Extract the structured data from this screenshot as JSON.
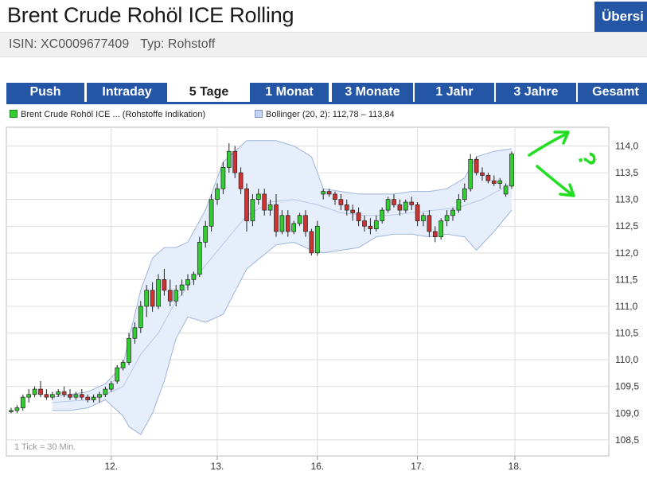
{
  "header": {
    "title": "Brent Crude Rohöl ICE Rolling",
    "isin_text": "ISIN: XC0009677409",
    "type_text": "Typ: Rohstoff",
    "overview_button": "Übersi"
  },
  "tabs": [
    {
      "label": "Push",
      "active": false
    },
    {
      "label": "Intraday",
      "active": false
    },
    {
      "label": "5 Tage",
      "active": true
    },
    {
      "label": "1 Monat",
      "active": false
    },
    {
      "label": "3 Monate",
      "active": false
    },
    {
      "label": "1 Jahr",
      "active": false
    },
    {
      "label": "3 Jahre",
      "active": false
    },
    {
      "label": "Gesamt",
      "active": false
    }
  ],
  "legend": {
    "series_label": "Brent Crude Rohöl ICE ... (Rohstoffe Indikation)",
    "bollinger_label": "Bollinger (20, 2): 112,78 – 113,84"
  },
  "colors": {
    "up": "#33cc33",
    "down": "#cc3333",
    "band_fill": "#e6eefb",
    "band_line": "#9fb5dc",
    "tab_bg": "#2456a5",
    "annotation": "#22dd22"
  },
  "annotation_glyph": "?",
  "chart_data": {
    "type": "candlestick",
    "tick_note": "1 Tick = 30 Min.",
    "ylim": [
      108.2,
      114.35
    ],
    "xlim": [
      0,
      85
    ],
    "yticks": [
      "114,0",
      "113,5",
      "113,0",
      "112,5",
      "112,0",
      "111,5",
      "111,0",
      "110,5",
      "110,0",
      "109,5",
      "109,0",
      "108,5"
    ],
    "ytick_values": [
      114.0,
      113.5,
      113.0,
      112.5,
      112.0,
      111.5,
      111.0,
      110.5,
      110.0,
      109.5,
      109.0,
      108.5
    ],
    "xticks": [
      {
        "label": "12.",
        "index": 17
      },
      {
        "label": "13.",
        "index": 35
      },
      {
        "label": "16.",
        "index": 52
      },
      {
        "label": "17.",
        "index": 69
      },
      {
        "label": "18.",
        "index": 86
      }
    ],
    "grid": true,
    "candles": [
      [
        109.05,
        109.1,
        109.0,
        109.05
      ],
      [
        109.05,
        109.15,
        109.0,
        109.1
      ],
      [
        109.1,
        109.35,
        109.05,
        109.3
      ],
      [
        109.3,
        109.45,
        109.2,
        109.35
      ],
      [
        109.35,
        109.5,
        109.3,
        109.45
      ],
      [
        109.45,
        109.6,
        109.3,
        109.35
      ],
      [
        109.35,
        109.45,
        109.25,
        109.3
      ],
      [
        109.3,
        109.4,
        109.25,
        109.35
      ],
      [
        109.35,
        109.45,
        109.3,
        109.4
      ],
      [
        109.4,
        109.5,
        109.3,
        109.35
      ],
      [
        109.35,
        109.45,
        109.25,
        109.3
      ],
      [
        109.3,
        109.4,
        109.25,
        109.35
      ],
      [
        109.35,
        109.45,
        109.25,
        109.3
      ],
      [
        109.3,
        109.35,
        109.2,
        109.25
      ],
      [
        109.25,
        109.35,
        109.2,
        109.3
      ],
      [
        109.3,
        109.4,
        109.2,
        109.35
      ],
      [
        109.35,
        109.5,
        109.3,
        109.45
      ],
      [
        109.45,
        109.6,
        109.4,
        109.55
      ],
      [
        109.6,
        109.9,
        109.55,
        109.85
      ],
      [
        109.85,
        110.0,
        109.8,
        109.95
      ],
      [
        109.95,
        110.5,
        109.9,
        110.4
      ],
      [
        110.4,
        110.7,
        110.3,
        110.6
      ],
      [
        110.6,
        111.1,
        110.5,
        111.0
      ],
      [
        111.0,
        111.4,
        110.8,
        111.3
      ],
      [
        111.3,
        111.45,
        110.9,
        111.0
      ],
      [
        111.0,
        111.6,
        110.95,
        111.5
      ],
      [
        111.5,
        111.7,
        111.2,
        111.3
      ],
      [
        111.3,
        111.5,
        111.0,
        111.1
      ],
      [
        111.1,
        111.4,
        111.0,
        111.3
      ],
      [
        111.3,
        111.5,
        111.2,
        111.4
      ],
      [
        111.4,
        111.6,
        111.3,
        111.5
      ],
      [
        111.5,
        111.65,
        111.4,
        111.6
      ],
      [
        111.6,
        112.3,
        111.55,
        112.2
      ],
      [
        112.2,
        112.6,
        112.1,
        112.5
      ],
      [
        112.5,
        113.1,
        112.4,
        113.0
      ],
      [
        113.0,
        113.3,
        112.9,
        113.2
      ],
      [
        113.2,
        113.7,
        113.1,
        113.6
      ],
      [
        113.6,
        114.05,
        113.5,
        113.9
      ],
      [
        113.9,
        114.0,
        113.4,
        113.5
      ],
      [
        113.5,
        113.6,
        113.1,
        113.2
      ],
      [
        113.2,
        113.3,
        112.4,
        112.6
      ],
      [
        112.6,
        113.1,
        112.5,
        113.0
      ],
      [
        113.0,
        113.2,
        112.9,
        113.1
      ],
      [
        113.1,
        113.2,
        112.7,
        112.8
      ],
      [
        112.8,
        113.0,
        112.7,
        112.9
      ],
      [
        112.9,
        113.1,
        112.3,
        112.4
      ],
      [
        112.4,
        112.8,
        112.35,
        112.7
      ],
      [
        112.7,
        112.8,
        112.3,
        112.4
      ],
      [
        112.4,
        112.6,
        112.35,
        112.55
      ],
      [
        112.55,
        112.75,
        112.5,
        112.7
      ],
      [
        112.7,
        112.8,
        112.3,
        112.4
      ],
      [
        112.4,
        112.45,
        111.95,
        112.0
      ],
      [
        112.0,
        112.6,
        111.95,
        112.5
      ],
      [
        113.1,
        113.2,
        113.0,
        113.15
      ],
      [
        113.15,
        113.2,
        113.05,
        113.1
      ],
      [
        113.1,
        113.15,
        112.9,
        113.0
      ],
      [
        113.0,
        113.1,
        112.8,
        112.9
      ],
      [
        112.9,
        113.0,
        112.7,
        112.8
      ],
      [
        112.8,
        112.9,
        112.6,
        112.75
      ],
      [
        112.75,
        112.85,
        112.5,
        112.6
      ],
      [
        112.6,
        112.7,
        112.4,
        112.5
      ],
      [
        112.5,
        112.65,
        112.35,
        112.45
      ],
      [
        112.45,
        112.7,
        112.4,
        112.6
      ],
      [
        112.6,
        112.85,
        112.55,
        112.8
      ],
      [
        112.8,
        113.05,
        112.75,
        113.0
      ],
      [
        113.0,
        113.1,
        112.85,
        112.9
      ],
      [
        112.9,
        113.0,
        112.7,
        112.8
      ],
      [
        112.8,
        113.0,
        112.75,
        112.95
      ],
      [
        112.95,
        113.05,
        112.8,
        112.9
      ],
      [
        112.9,
        112.95,
        112.5,
        112.6
      ],
      [
        112.6,
        112.75,
        112.5,
        112.7
      ],
      [
        112.7,
        112.8,
        112.3,
        112.4
      ],
      [
        112.4,
        112.5,
        112.2,
        112.3
      ],
      [
        112.3,
        112.65,
        112.25,
        112.6
      ],
      [
        112.6,
        112.8,
        112.5,
        112.7
      ],
      [
        112.7,
        112.85,
        112.6,
        112.8
      ],
      [
        112.8,
        113.1,
        112.75,
        113.0
      ],
      [
        113.0,
        113.3,
        112.95,
        113.2
      ],
      [
        113.2,
        113.85,
        113.15,
        113.75
      ],
      [
        113.75,
        113.8,
        113.45,
        113.5
      ],
      [
        113.5,
        113.6,
        113.35,
        113.45
      ],
      [
        113.45,
        113.5,
        113.3,
        113.35
      ],
      [
        113.35,
        113.45,
        113.25,
        113.3
      ],
      [
        113.3,
        113.4,
        113.2,
        113.35
      ],
      [
        113.1,
        113.3,
        113.05,
        113.25
      ],
      [
        113.25,
        113.9,
        113.2,
        113.85
      ]
    ],
    "bollinger_upper": [
      [
        7,
        109.3
      ],
      [
        10,
        109.35
      ],
      [
        13,
        109.4
      ],
      [
        16,
        109.55
      ],
      [
        19,
        109.9
      ],
      [
        20,
        110.4
      ],
      [
        22,
        111.3
      ],
      [
        24,
        111.9
      ],
      [
        26,
        112.1
      ],
      [
        28,
        112.1
      ],
      [
        30,
        112.2
      ],
      [
        33,
        112.8
      ],
      [
        36,
        113.7
      ],
      [
        40,
        114.1
      ],
      [
        45,
        114.1
      ],
      [
        48,
        114.0
      ],
      [
        51,
        113.8
      ],
      [
        53,
        113.2
      ],
      [
        56,
        113.15
      ],
      [
        59,
        113.1
      ],
      [
        62,
        113.1
      ],
      [
        65,
        113.1
      ],
      [
        68,
        113.15
      ],
      [
        71,
        113.15
      ],
      [
        74,
        113.2
      ],
      [
        77,
        113.4
      ],
      [
        79,
        113.8
      ],
      [
        82,
        113.9
      ],
      [
        85,
        113.95
      ]
    ],
    "bollinger_lower": [
      [
        7,
        109.05
      ],
      [
        10,
        109.05
      ],
      [
        13,
        109.1
      ],
      [
        16,
        109.25
      ],
      [
        19,
        108.95
      ],
      [
        20,
        108.75
      ],
      [
        22,
        108.6
      ],
      [
        24,
        109.0
      ],
      [
        26,
        109.6
      ],
      [
        28,
        110.4
      ],
      [
        30,
        110.8
      ],
      [
        33,
        110.7
      ],
      [
        36,
        110.85
      ],
      [
        40,
        111.7
      ],
      [
        45,
        112.15
      ],
      [
        48,
        112.2
      ],
      [
        51,
        112.05
      ],
      [
        53,
        112.0
      ],
      [
        56,
        112.05
      ],
      [
        59,
        112.1
      ],
      [
        62,
        112.3
      ],
      [
        65,
        112.35
      ],
      [
        68,
        112.35
      ],
      [
        71,
        112.3
      ],
      [
        74,
        112.35
      ],
      [
        77,
        112.3
      ],
      [
        79,
        112.05
      ],
      [
        82,
        112.4
      ],
      [
        85,
        112.8
      ]
    ],
    "bollinger_middle": [
      [
        7,
        109.2
      ],
      [
        13,
        109.25
      ],
      [
        16,
        109.35
      ],
      [
        19,
        109.5
      ],
      [
        22,
        110.1
      ],
      [
        25,
        110.5
      ],
      [
        28,
        111.1
      ],
      [
        31,
        111.5
      ],
      [
        34,
        111.9
      ],
      [
        37,
        112.3
      ],
      [
        40,
        112.7
      ],
      [
        44,
        112.95
      ],
      [
        48,
        113.0
      ],
      [
        52,
        112.9
      ],
      [
        56,
        112.75
      ],
      [
        60,
        112.7
      ],
      [
        64,
        112.7
      ],
      [
        68,
        112.75
      ],
      [
        72,
        112.8
      ],
      [
        76,
        112.85
      ],
      [
        80,
        113.0
      ],
      [
        85,
        113.3
      ]
    ]
  }
}
